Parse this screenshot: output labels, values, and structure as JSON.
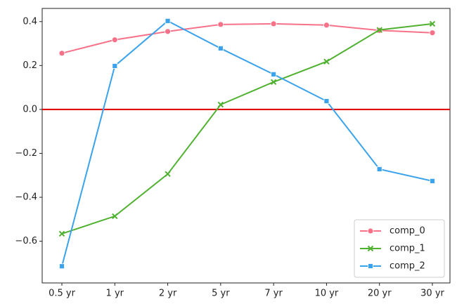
{
  "chart_data": {
    "type": "line",
    "categories": [
      "0.5 yr",
      "1 yr",
      "2 yr",
      "5 yr",
      "7 yr",
      "10 yr",
      "20 yr",
      "30 yr"
    ],
    "series": [
      {
        "name": "comp_0",
        "color": "#f77189",
        "marker": "circle",
        "values": [
          0.256,
          0.317,
          0.355,
          0.387,
          0.39,
          0.384,
          0.36,
          0.349
        ]
      },
      {
        "name": "comp_1",
        "color": "#50b131",
        "marker": "x",
        "values": [
          -0.566,
          -0.486,
          -0.294,
          0.022,
          0.125,
          0.218,
          0.362,
          0.39
        ]
      },
      {
        "name": "comp_2",
        "color": "#3ba3ec",
        "marker": "square",
        "values": [
          -0.714,
          0.198,
          0.403,
          0.278,
          0.16,
          0.038,
          -0.272,
          -0.326
        ]
      }
    ],
    "ylim": [
      -0.79,
      0.46
    ],
    "yticks": [
      {
        "value": -0.6,
        "label": "−0.6"
      },
      {
        "value": -0.4,
        "label": "−0.4"
      },
      {
        "value": -0.2,
        "label": "−0.2"
      },
      {
        "value": 0,
        "label": "0.0"
      },
      {
        "value": 0.2,
        "label": "0.2"
      },
      {
        "value": 0.4,
        "label": "0.4"
      }
    ],
    "hline": {
      "y": 0,
      "color": "#e00000"
    },
    "legend": "lower right"
  }
}
